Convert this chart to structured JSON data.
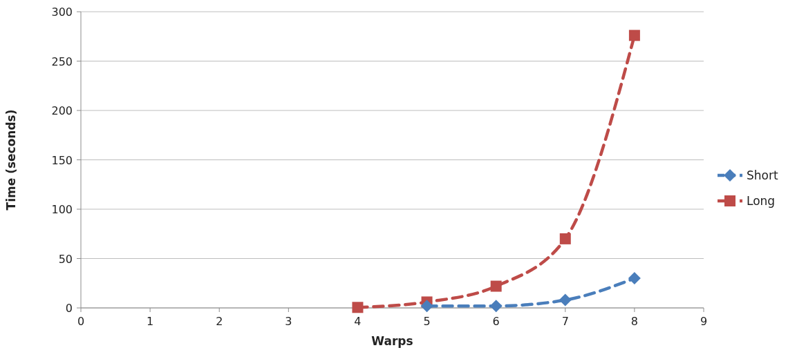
{
  "chart_data": {
    "type": "line",
    "xlabel": "Warps",
    "ylabel": "Time (seconds)",
    "x": [
      4,
      5,
      6,
      7,
      8
    ],
    "series": [
      {
        "name": "Short",
        "color": "#4a7ebb",
        "values": [
          null,
          2,
          2,
          8,
          30
        ],
        "marker": "diamond"
      },
      {
        "name": "Long",
        "color": "#be4b48",
        "values": [
          0.5,
          6,
          22,
          70,
          276
        ],
        "marker": "square"
      }
    ],
    "xlim": [
      0,
      9
    ],
    "xticks": [
      0,
      1,
      2,
      3,
      4,
      5,
      6,
      7,
      8,
      9
    ],
    "ylim": [
      0,
      300
    ],
    "yticks": [
      0,
      50,
      100,
      150,
      200,
      250,
      300
    ],
    "grid": "y",
    "legend": "right",
    "line_style": "dashed"
  }
}
